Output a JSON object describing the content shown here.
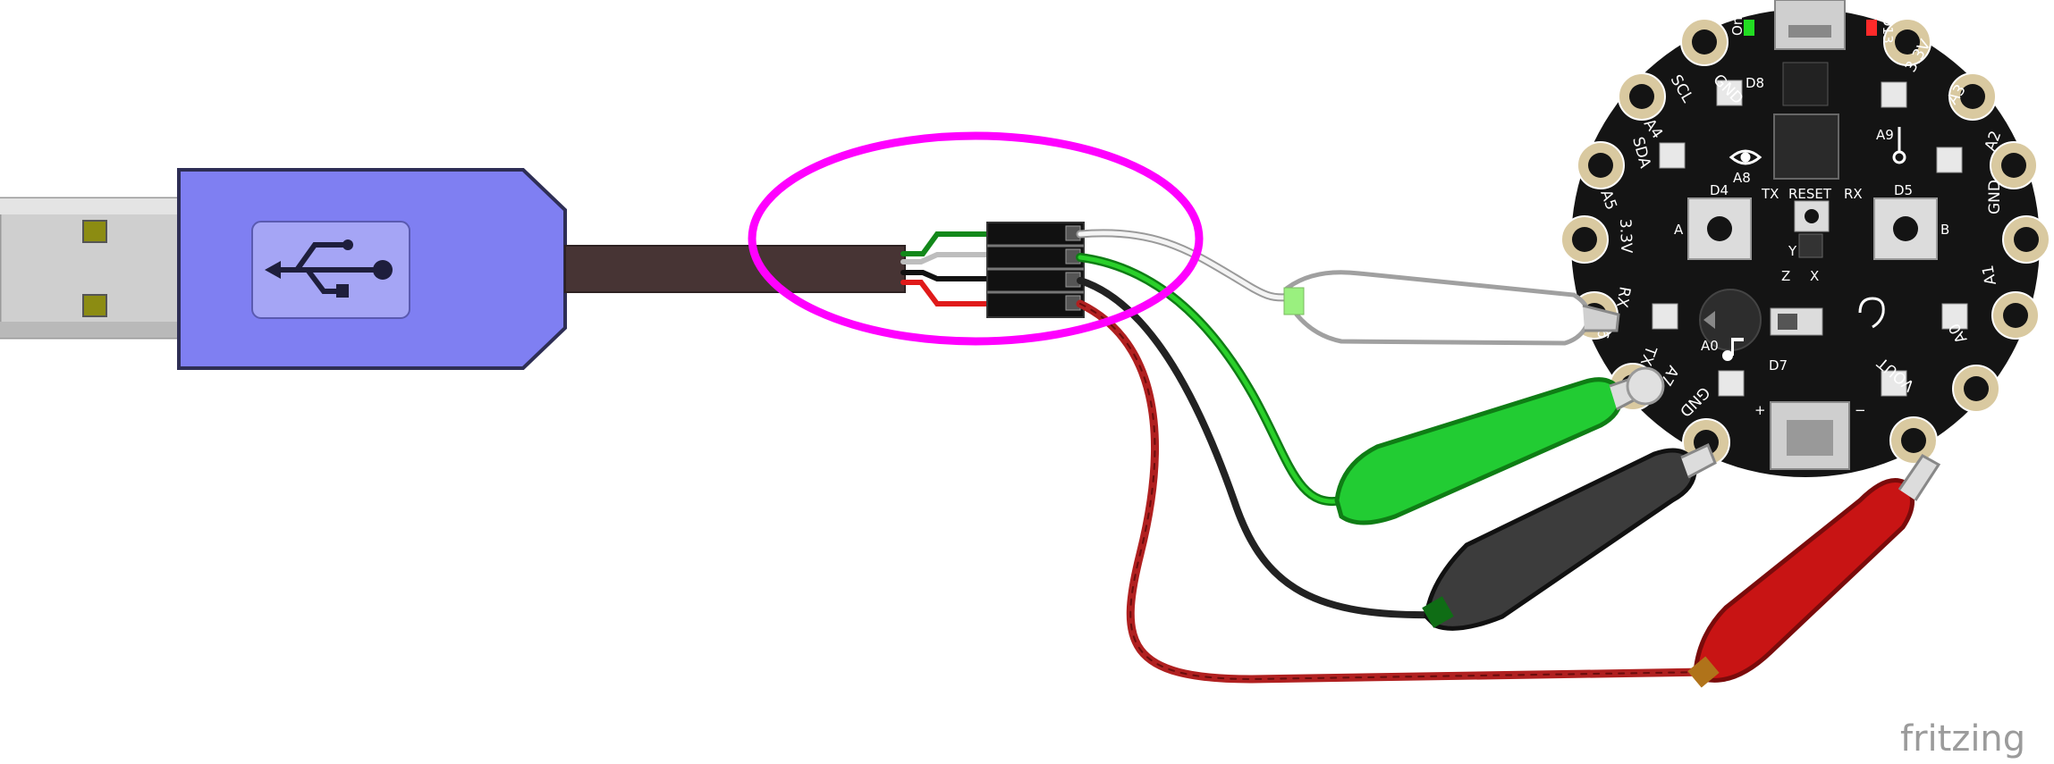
{
  "colors": {
    "usb_body": "#7f7ff2",
    "usb_plug": "#cfcfcf",
    "cable": "#473434",
    "highlight": "#ff00ff",
    "wire_green": "#1fae1f",
    "wire_white": "#f0f0f0",
    "wire_black": "#202020",
    "wire_red": "#c01818",
    "clip_white": "#ffffff",
    "clip_green": "#22cc33",
    "clip_black": "#3c3c3c",
    "clip_red": "#c81414",
    "board": "#141414",
    "pad": "#d9c9a0"
  },
  "usb": {
    "icon": "usb-trident-icon"
  },
  "board": {
    "pad_labels": [
      "SCL",
      "A4",
      "SDA",
      "A5",
      "3.3V",
      "RX",
      "A6",
      "TX",
      "A7",
      "GND",
      "VOUT",
      "A0",
      "A1",
      "GND",
      "A2",
      "A3",
      "3.3V",
      "GND"
    ],
    "status_labels": {
      "on": "On",
      "d13": "D13"
    },
    "component_labels": [
      "D8",
      "A9",
      "A8",
      "D4",
      "TX",
      "RESET",
      "RX",
      "D5",
      "A",
      "B",
      "D7",
      "A0",
      "Y",
      "Z",
      "X"
    ],
    "polarity": {
      "plus": "+",
      "minus": "−"
    }
  },
  "watermark": "fritzing"
}
